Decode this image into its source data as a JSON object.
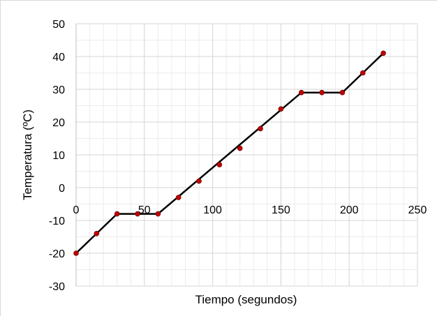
{
  "chart_data": {
    "type": "scatter",
    "xlabel": "Tiempo (segundos)",
    "ylabel": "Temperatura (ºC)",
    "xlim": [
      0,
      250
    ],
    "ylim": [
      -30,
      50
    ],
    "x_ticks": [
      0,
      50,
      100,
      150,
      200,
      250
    ],
    "y_ticks": [
      -30,
      -20,
      -10,
      0,
      10,
      20,
      30,
      40,
      50
    ],
    "x_tick_labels": [
      "0",
      "50",
      "100",
      "150",
      "200",
      "250"
    ],
    "y_tick_labels": [
      "-30",
      "-20",
      "-10",
      "0",
      "10",
      "20",
      "30",
      "40",
      "50"
    ],
    "x_minor_step": 10,
    "y_minor_step": 5,
    "grid": true,
    "series": [
      {
        "type": "scatter",
        "color": "#c00000",
        "points": [
          [
            0,
            -20
          ],
          [
            15,
            -14
          ],
          [
            30,
            -8
          ],
          [
            45,
            -8
          ],
          [
            60,
            -8
          ],
          [
            75,
            -3
          ],
          [
            90,
            2
          ],
          [
            105,
            7
          ],
          [
            120,
            12
          ],
          [
            135,
            18
          ],
          [
            150,
            24
          ],
          [
            165,
            29
          ],
          [
            180,
            29
          ],
          [
            195,
            29
          ],
          [
            210,
            35
          ],
          [
            225,
            41
          ]
        ]
      },
      {
        "type": "line",
        "color": "#000000",
        "points": [
          [
            0,
            -20
          ],
          [
            30,
            -8
          ],
          [
            60,
            -8
          ],
          [
            165,
            29
          ],
          [
            195,
            29
          ],
          [
            225,
            41
          ]
        ]
      }
    ]
  }
}
